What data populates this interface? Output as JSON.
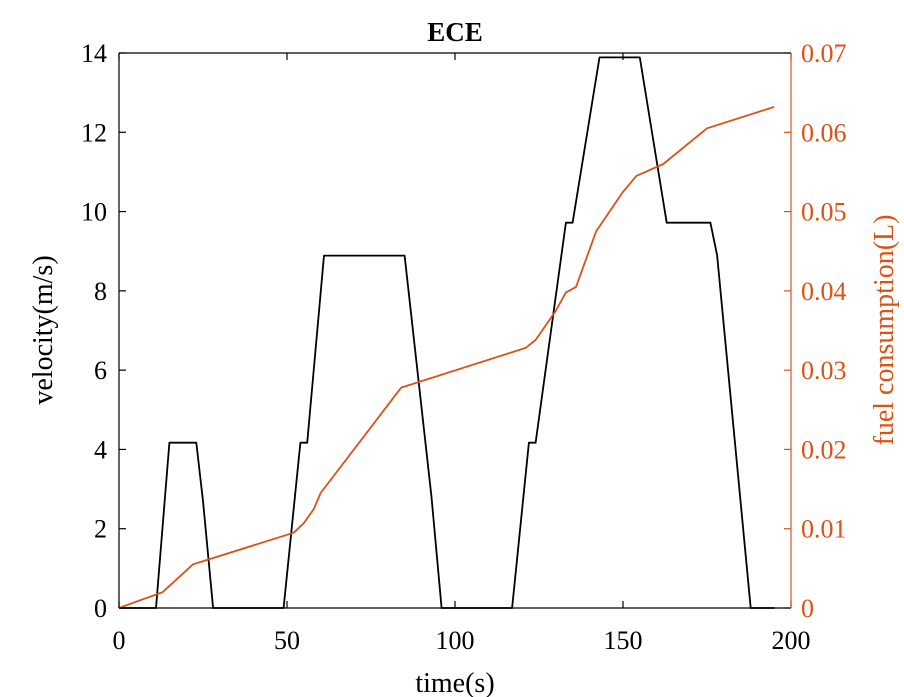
{
  "chart_data": {
    "type": "line",
    "title": "ECE",
    "xlabel": "time(s)",
    "ylabel_left": "velocity(m/s)",
    "ylabel_right": "fuel consumption(L)",
    "xlim": [
      0,
      200
    ],
    "ylim_left": [
      0,
      14
    ],
    "ylim_right": [
      0,
      0.07
    ],
    "xticks": [
      0,
      50,
      100,
      150,
      200
    ],
    "yticks_left": [
      0,
      2,
      4,
      6,
      8,
      10,
      12,
      14
    ],
    "yticks_right": [
      0,
      0.01,
      0.02,
      0.03,
      0.04,
      0.05,
      0.06,
      0.07
    ],
    "grid": false,
    "legend": "none",
    "series": [
      {
        "axis": "left",
        "color": "#000000",
        "points": [
          [
            0,
            0
          ],
          [
            11,
            0
          ],
          [
            15,
            4.17
          ],
          [
            23,
            4.17
          ],
          [
            25,
            2.7
          ],
          [
            28,
            0
          ],
          [
            49,
            0
          ],
          [
            54,
            4.17
          ],
          [
            56,
            4.17
          ],
          [
            61,
            8.89
          ],
          [
            85,
            8.89
          ],
          [
            93,
            2.8
          ],
          [
            96,
            0
          ],
          [
            117,
            0
          ],
          [
            122,
            4.17
          ],
          [
            124,
            4.17
          ],
          [
            133,
            9.72
          ],
          [
            135,
            9.72
          ],
          [
            143,
            13.89
          ],
          [
            155,
            13.89
          ],
          [
            163,
            9.72
          ],
          [
            176,
            9.72
          ],
          [
            178,
            8.9
          ],
          [
            188,
            0
          ],
          [
            195,
            0
          ]
        ]
      },
      {
        "axis": "right",
        "color": "#D95319",
        "points": [
          [
            0,
            0
          ],
          [
            13,
            0.002
          ],
          [
            22,
            0.0055
          ],
          [
            52,
            0.0095
          ],
          [
            55,
            0.0107
          ],
          [
            58,
            0.0125
          ],
          [
            60,
            0.0145
          ],
          [
            84,
            0.0278
          ],
          [
            121,
            0.0328
          ],
          [
            124,
            0.0338
          ],
          [
            130,
            0.0375
          ],
          [
            133,
            0.0398
          ],
          [
            136,
            0.0405
          ],
          [
            142,
            0.0475
          ],
          [
            150,
            0.0525
          ],
          [
            154,
            0.0545
          ],
          [
            162,
            0.056
          ],
          [
            175,
            0.0605
          ],
          [
            195,
            0.0632
          ]
        ]
      }
    ]
  }
}
